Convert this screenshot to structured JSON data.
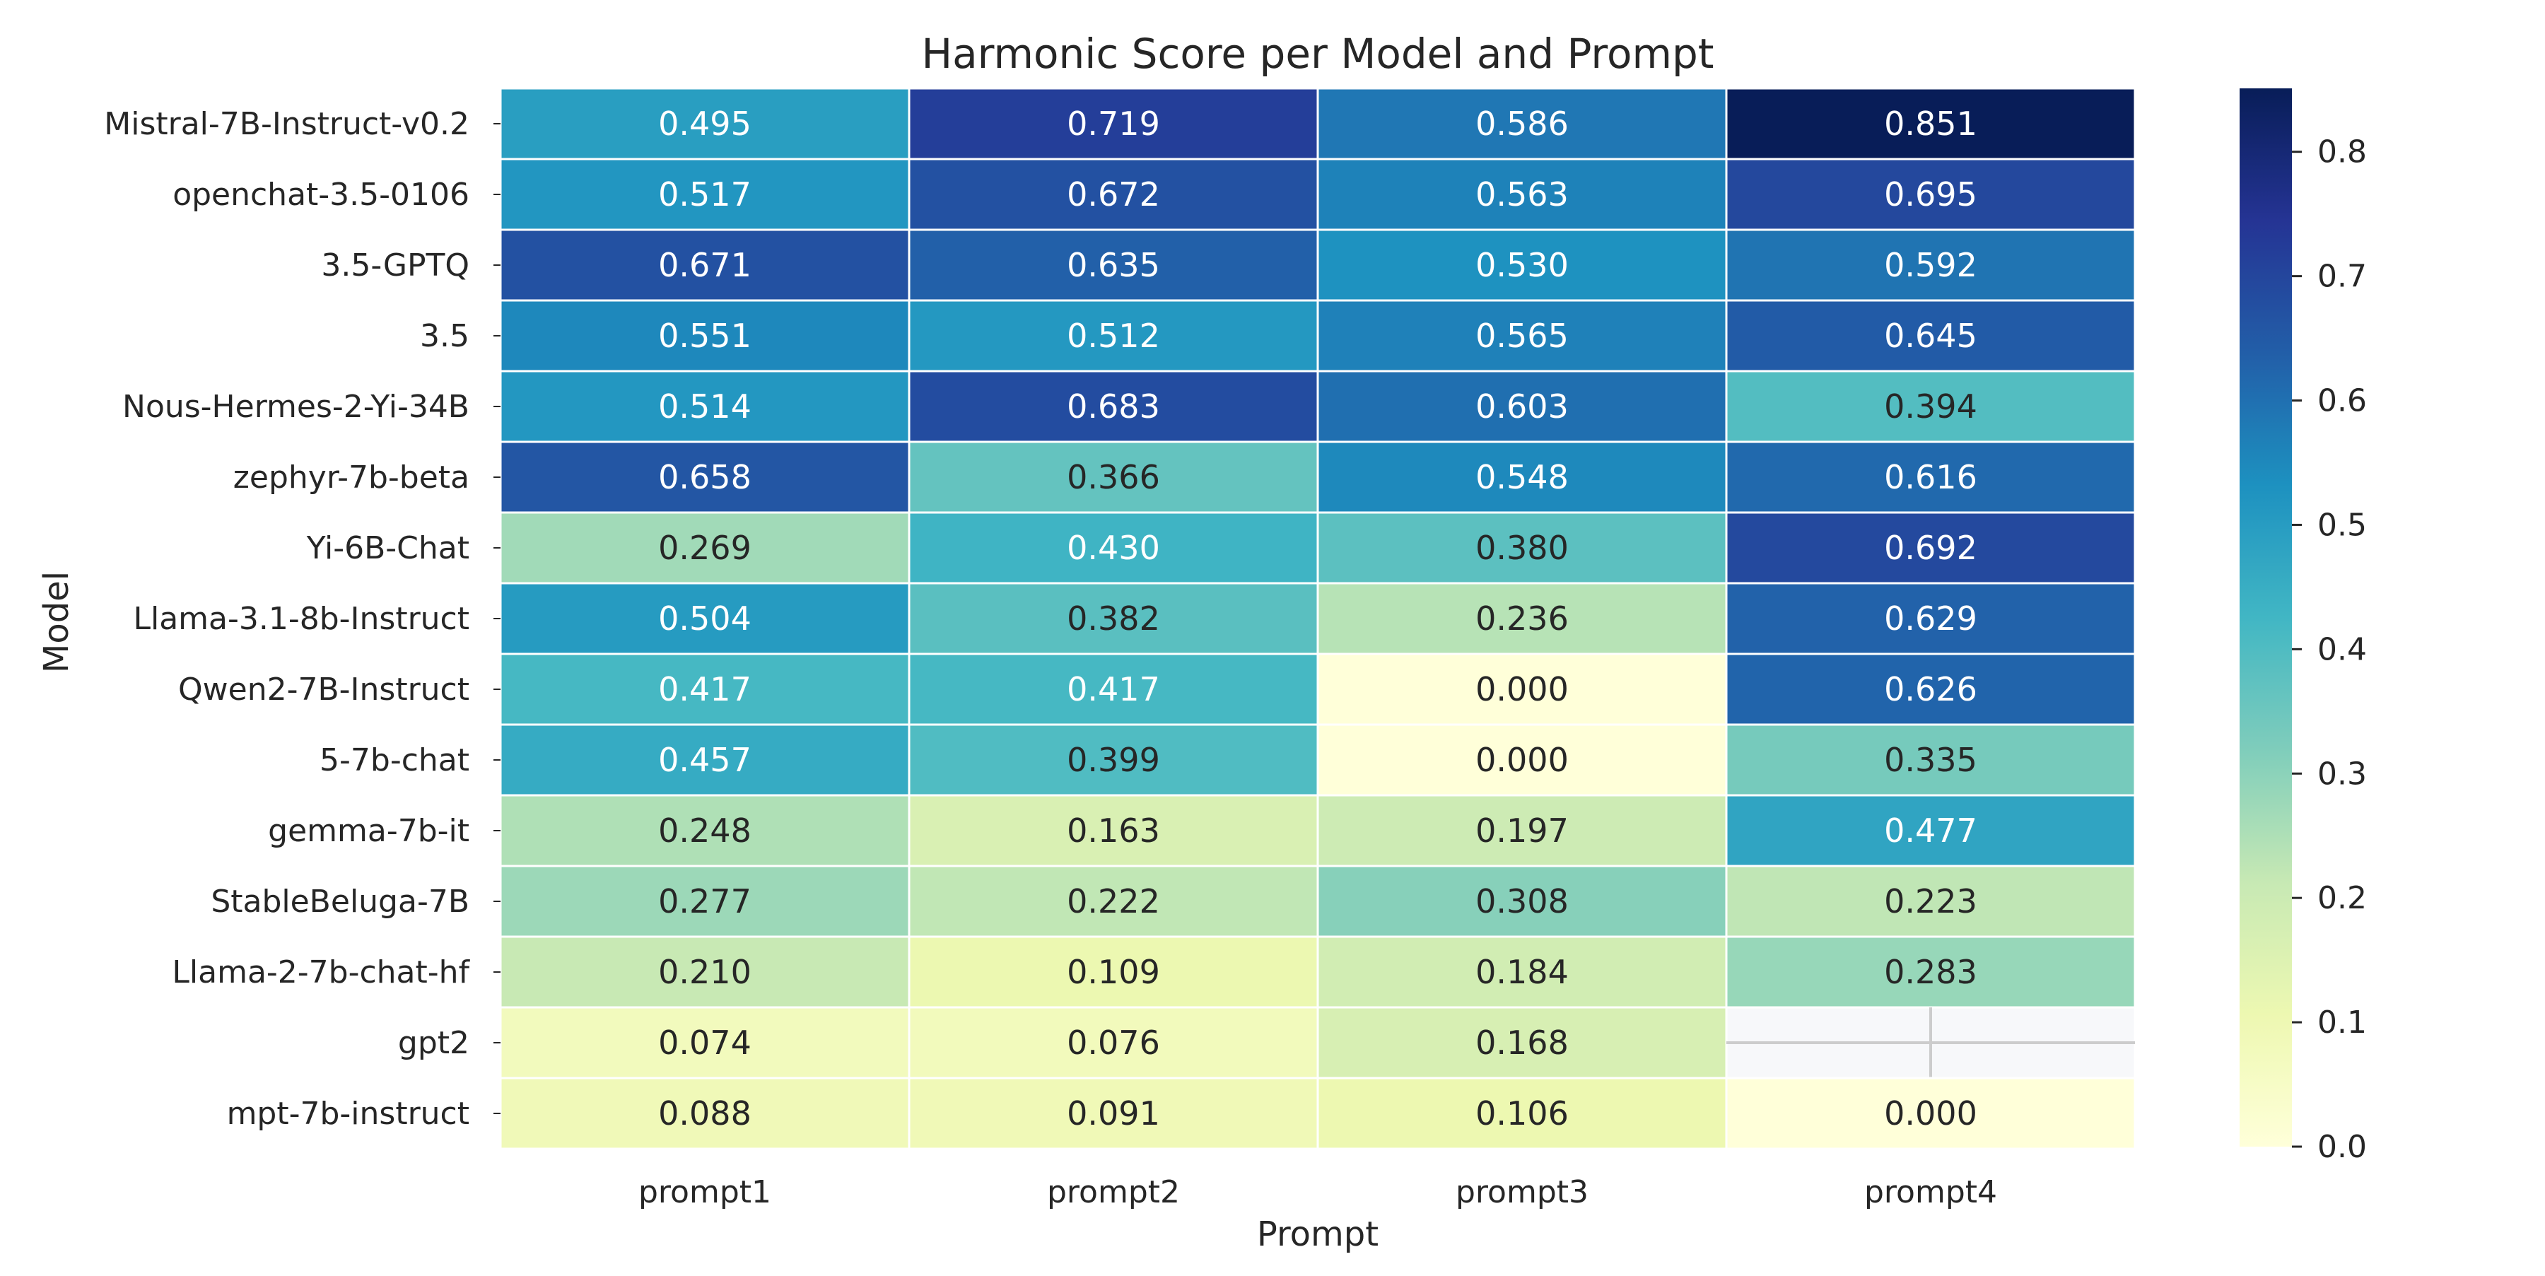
{
  "chart_data": {
    "type": "heatmap",
    "title": "Harmonic Score per Model and Prompt",
    "xlabel": "Prompt",
    "ylabel": "Model",
    "x_categories": [
      "prompt1",
      "prompt2",
      "prompt3",
      "prompt4"
    ],
    "y_categories": [
      "Mistral-7B-Instruct-v0.2",
      "openchat-3.5-0106",
      "3.5-GPTQ",
      "3.5",
      "Nous-Hermes-2-Yi-34B",
      "zephyr-7b-beta",
      "Yi-6B-Chat",
      "Llama-3.1-8b-Instruct",
      "Qwen2-7B-Instruct",
      "5-7b-chat",
      "gemma-7b-it",
      "StableBeluga-7B",
      "Llama-2-7b-chat-hf",
      "gpt2",
      "mpt-7b-instruct"
    ],
    "values": [
      [
        0.495,
        0.719,
        0.586,
        0.851
      ],
      [
        0.517,
        0.672,
        0.563,
        0.695
      ],
      [
        0.671,
        0.635,
        0.53,
        0.592
      ],
      [
        0.551,
        0.512,
        0.565,
        0.645
      ],
      [
        0.514,
        0.683,
        0.603,
        0.394
      ],
      [
        0.658,
        0.366,
        0.548,
        0.616
      ],
      [
        0.269,
        0.43,
        0.38,
        0.692
      ],
      [
        0.504,
        0.382,
        0.236,
        0.629
      ],
      [
        0.417,
        0.417,
        0.0,
        0.626
      ],
      [
        0.457,
        0.399,
        0.0,
        0.335
      ],
      [
        0.248,
        0.163,
        0.197,
        0.477
      ],
      [
        0.277,
        0.222,
        0.308,
        0.223
      ],
      [
        0.21,
        0.109,
        0.184,
        0.283
      ],
      [
        0.074,
        0.076,
        0.168,
        null
      ],
      [
        0.088,
        0.091,
        0.106,
        0.0
      ]
    ],
    "value_format": "0.000",
    "colormap": "YlGnBu",
    "vmin": 0.0,
    "vmax": 0.851,
    "colorbar": {
      "ticks": [
        0.0,
        0.1,
        0.2,
        0.3,
        0.4,
        0.5,
        0.6,
        0.7,
        0.8
      ],
      "tick_labels": [
        "0.0",
        "0.1",
        "0.2",
        "0.3",
        "0.4",
        "0.5",
        "0.6",
        "0.7",
        "0.8"
      ]
    },
    "cell_border_color": "#ffffff",
    "missing_cell_color": "#f7f8fa",
    "legend_position": "right"
  }
}
